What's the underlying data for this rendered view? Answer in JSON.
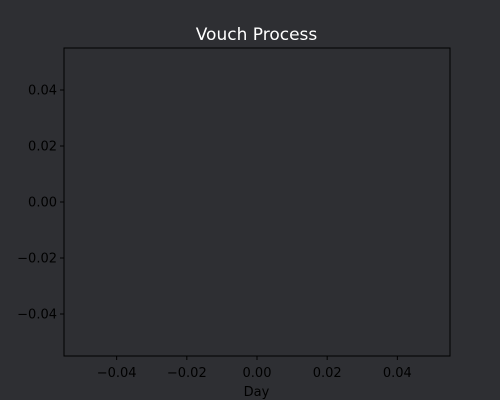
{
  "chart_data": {
    "type": "line",
    "title": "Vouch Process",
    "xlabel": "Day",
    "ylabel": "",
    "xlim": [
      -0.055,
      0.055
    ],
    "ylim": [
      -0.055,
      0.055
    ],
    "xticks": [
      -0.04,
      -0.02,
      0.0,
      0.02,
      0.04
    ],
    "xtick_labels": [
      "−0.04",
      "−0.02",
      "0.00",
      "0.02",
      "0.04"
    ],
    "yticks": [
      0.04,
      0.02,
      0.0,
      -0.02,
      -0.04
    ],
    "ytick_labels": [
      "0.04",
      "0.02",
      "0.00",
      "−0.02",
      "−0.04"
    ],
    "series": [],
    "grid": false,
    "colors": {
      "background": "#2e2f33",
      "axes_face": "#2e2f33",
      "spine": "#000000",
      "title": "#ffffff",
      "tick_text": "#000000"
    }
  }
}
